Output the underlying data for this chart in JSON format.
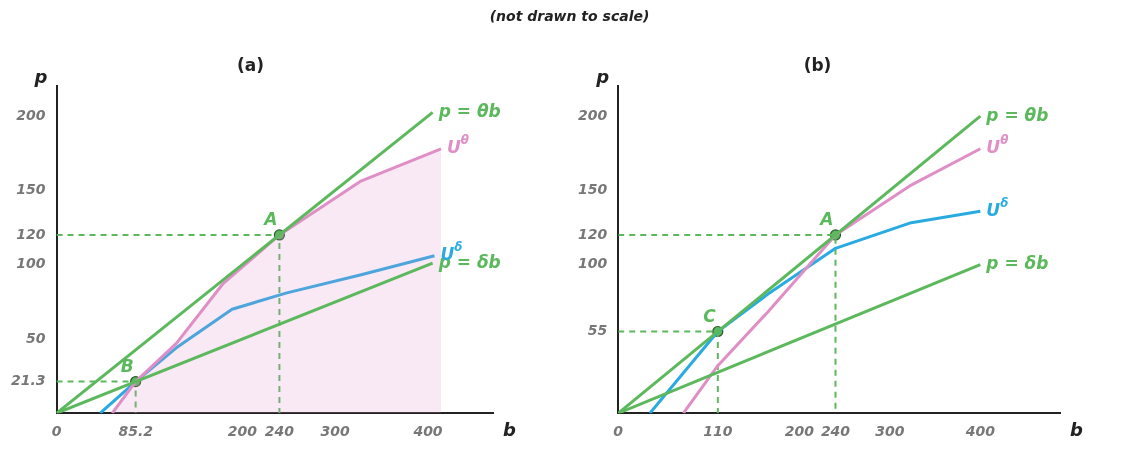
{
  "chart_data": [
    {
      "type": "line",
      "title": "(a)",
      "annotations": [
        "(not drawn to scale)",
        {
          "text": "A",
          "x": 240,
          "y": 120
        },
        {
          "text": "B",
          "x": 85.2,
          "y": 21.3
        }
      ],
      "xlabel": "b",
      "ylabel": "p",
      "xlim": [
        0,
        470
      ],
      "ylim": [
        0,
        220
      ],
      "xticks": [
        0,
        85.2,
        200,
        240,
        300,
        400
      ],
      "yticks": [
        21.3,
        50,
        100,
        120,
        150,
        200
      ],
      "grid": false,
      "legend": false,
      "series": [
        {
          "name": "p = θb",
          "color": "#5cb85c",
          "x": [
            0,
            405
          ],
          "values": [
            0,
            202.5
          ]
        },
        {
          "name": "p = δb",
          "color": "#5cb85c",
          "x": [
            0,
            405
          ],
          "values": [
            0,
            101
          ]
        },
        {
          "name": "U$^{θ}$",
          "type": "area",
          "color": "#e08fc6",
          "x": [
            60,
            85.2,
            129,
            179,
            240,
            327,
            414
          ],
          "values": [
            0,
            21.3,
            47,
            87,
            120,
            156,
            178
          ]
        },
        {
          "name": "U$^{δ}$",
          "type": "line",
          "color": "#29abe2",
          "x": [
            47,
            85.2,
            129,
            189,
            248,
            327,
            407
          ],
          "values": [
            0,
            21.3,
            44,
            70,
            81,
            93,
            106
          ]
        },
        {
          "type": "line",
          "line_style": "dashed",
          "color": "#5cb85c",
          "x": [
            0,
            240,
            240
          ],
          "values": [
            120,
            120,
            0
          ]
        },
        {
          "type": "line",
          "line_style": "dashed",
          "color": "#5cb85c",
          "x": [
            0,
            85.2,
            85.2
          ],
          "values": [
            21.3,
            21.3,
            0
          ]
        },
        {
          "type": "scatter",
          "marker": "circle",
          "color": "#5cb85c",
          "x": [
            240,
            85.2
          ],
          "values": [
            120,
            21.3
          ]
        }
      ]
    },
    {
      "type": "line",
      "title": "(b)",
      "annotations": [
        {
          "text": "A",
          "x": 240,
          "y": 120
        },
        {
          "text": "C",
          "x": 110,
          "y": 55
        }
      ],
      "xlabel": "b",
      "ylabel": "p",
      "xlim": [
        0,
        488
      ],
      "ylim": [
        0,
        220
      ],
      "xticks": [
        0,
        110,
        200,
        240,
        300,
        400
      ],
      "yticks": [
        55,
        100,
        120,
        150,
        200
      ],
      "grid": false,
      "legend": false,
      "series": [
        {
          "name": "p = θb",
          "color": "#5cb85c",
          "x": [
            0,
            400
          ],
          "values": [
            0,
            200
          ]
        },
        {
          "name": "p = δb",
          "color": "#5cb85c",
          "x": [
            0,
            400
          ],
          "values": [
            0,
            100
          ]
        },
        {
          "name": "U$^{θ}$",
          "type": "line",
          "color": "#e08fc6",
          "x": [
            72,
            110,
            165,
            240,
            322,
            400
          ],
          "values": [
            0,
            32,
            68,
            120,
            153,
            178
          ]
        },
        {
          "name": "U$^{δ}$",
          "type": "line",
          "color": "#29abe2",
          "x": [
            35,
            110,
            165,
            240,
            322,
            400
          ],
          "values": [
            0,
            55,
            80,
            111,
            128,
            136
          ]
        },
        {
          "type": "line",
          "line_style": "dashed",
          "color": "#5cb85c",
          "x": [
            0,
            240,
            240
          ],
          "values": [
            120,
            120,
            0
          ]
        },
        {
          "type": "line",
          "line_style": "dashed",
          "color": "#5cb85c",
          "x": [
            0,
            110,
            110
          ],
          "values": [
            55,
            55,
            0
          ]
        },
        {
          "type": "scatter",
          "marker": "circle",
          "color": "#5cb85c",
          "x": [
            240,
            110
          ],
          "values": [
            120,
            55
          ]
        }
      ]
    }
  ]
}
